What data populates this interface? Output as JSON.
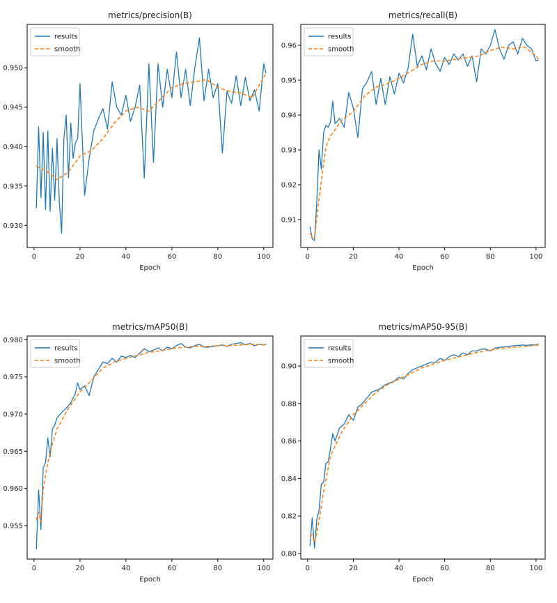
{
  "figure": {
    "colors": {
      "results": "#1f77b4",
      "smooth": "#ff7f0e"
    },
    "charts": [
      "precision",
      "recall",
      "map50",
      "map5095"
    ]
  },
  "chart_data": [
    {
      "type": "line",
      "title": "metrics/precision(B)",
      "xlabel": "Epoch",
      "ylabel": "",
      "xlim": [
        -3,
        104
      ],
      "ylim": [
        0.9272,
        0.9555
      ],
      "xticks": [
        0,
        20,
        40,
        60,
        80,
        100
      ],
      "xtick_labels": [
        "0",
        "20",
        "40",
        "60",
        "80",
        "100"
      ],
      "yticks": [
        0.93,
        0.935,
        0.94,
        0.945,
        0.95
      ],
      "ytick_labels": [
        "0.930",
        "0.935",
        "0.940",
        "0.945",
        "0.950"
      ],
      "legend": {
        "position": "top-left",
        "entries": [
          "results",
          "smooth"
        ]
      },
      "series": [
        {
          "name": "results",
          "style": "solid",
          "x": [
            1,
            2,
            3,
            4,
            5,
            6,
            7,
            8,
            9,
            10,
            11,
            12,
            13,
            14,
            15,
            16,
            17,
            18,
            19,
            20,
            22,
            24,
            26,
            28,
            30,
            32,
            34,
            36,
            38,
            40,
            42,
            44,
            46,
            48,
            50,
            52,
            54,
            56,
            58,
            60,
            62,
            64,
            66,
            68,
            70,
            72,
            74,
            76,
            78,
            80,
            82,
            84,
            86,
            88,
            90,
            92,
            94,
            96,
            98,
            100,
            101
          ],
          "y": [
            0.9322,
            0.9425,
            0.9335,
            0.9418,
            0.932,
            0.942,
            0.9318,
            0.9398,
            0.9332,
            0.941,
            0.933,
            0.929,
            0.941,
            0.944,
            0.936,
            0.943,
            0.9385,
            0.9405,
            0.941,
            0.948,
            0.9338,
            0.9385,
            0.942,
            0.9435,
            0.9448,
            0.9422,
            0.9482,
            0.945,
            0.944,
            0.9465,
            0.9432,
            0.945,
            0.9478,
            0.936,
            0.9505,
            0.938,
            0.9505,
            0.945,
            0.9498,
            0.9462,
            0.952,
            0.9462,
            0.9498,
            0.9452,
            0.95,
            0.9538,
            0.9458,
            0.9498,
            0.9462,
            0.948,
            0.9392,
            0.947,
            0.9455,
            0.949,
            0.9452,
            0.9488,
            0.9458,
            0.9472,
            0.9445,
            0.9505,
            0.9493
          ]
        },
        {
          "name": "smooth",
          "style": "dashed",
          "x": [
            1,
            5,
            10,
            15,
            20,
            25,
            30,
            35,
            40,
            45,
            50,
            55,
            60,
            65,
            70,
            75,
            80,
            85,
            90,
            95,
            100,
            101
          ],
          "y": [
            0.9375,
            0.937,
            0.9358,
            0.9368,
            0.9388,
            0.9395,
            0.941,
            0.943,
            0.9445,
            0.945,
            0.9445,
            0.946,
            0.9475,
            0.948,
            0.9482,
            0.9485,
            0.9475,
            0.947,
            0.9468,
            0.9462,
            0.9488,
            0.9493
          ]
        }
      ]
    },
    {
      "type": "line",
      "title": "metrics/recall(B)",
      "xlabel": "Epoch",
      "ylabel": "",
      "xlim": [
        -3,
        104
      ],
      "ylim": [
        0.902,
        0.966
      ],
      "xticks": [
        0,
        20,
        40,
        60,
        80,
        100
      ],
      "xtick_labels": [
        "0",
        "20",
        "40",
        "60",
        "80",
        "100"
      ],
      "yticks": [
        0.91,
        0.92,
        0.93,
        0.94,
        0.95,
        0.96
      ],
      "ytick_labels": [
        "0.91",
        "0.92",
        "0.93",
        "0.94",
        "0.95",
        "0.96"
      ],
      "legend": {
        "position": "top-left",
        "entries": [
          "results",
          "smooth"
        ]
      },
      "series": [
        {
          "name": "results",
          "style": "solid",
          "x": [
            1,
            2,
            3,
            4,
            5,
            6,
            7,
            8,
            9,
            10,
            11,
            12,
            14,
            16,
            18,
            20,
            22,
            24,
            26,
            28,
            30,
            32,
            34,
            36,
            38,
            40,
            42,
            44,
            46,
            48,
            50,
            52,
            54,
            56,
            58,
            60,
            62,
            64,
            66,
            68,
            70,
            72,
            74,
            76,
            78,
            80,
            82,
            84,
            86,
            88,
            90,
            92,
            94,
            96,
            98,
            100,
            101
          ],
          "y": [
            0.908,
            0.9045,
            0.904,
            0.915,
            0.93,
            0.9245,
            0.935,
            0.937,
            0.9365,
            0.938,
            0.944,
            0.9375,
            0.939,
            0.9365,
            0.9465,
            0.942,
            0.9335,
            0.9475,
            0.9495,
            0.9525,
            0.943,
            0.9505,
            0.943,
            0.951,
            0.946,
            0.952,
            0.9492,
            0.9535,
            0.9632,
            0.954,
            0.957,
            0.953,
            0.959,
            0.9548,
            0.9525,
            0.9565,
            0.9545,
            0.9575,
            0.9558,
            0.9575,
            0.954,
            0.957,
            0.9495,
            0.959,
            0.9575,
            0.96,
            0.9645,
            0.959,
            0.956,
            0.96,
            0.961,
            0.9575,
            0.962,
            0.96,
            0.959,
            0.9555,
            0.9558
          ]
        },
        {
          "name": "smooth",
          "style": "dashed",
          "x": [
            1,
            3,
            5,
            8,
            10,
            15,
            20,
            25,
            30,
            35,
            40,
            45,
            50,
            55,
            60,
            65,
            70,
            75,
            80,
            85,
            90,
            95,
            100,
            101
          ],
          "y": [
            0.906,
            0.9045,
            0.916,
            0.931,
            0.934,
            0.9385,
            0.941,
            0.9455,
            0.948,
            0.949,
            0.9505,
            0.9525,
            0.9545,
            0.9555,
            0.9555,
            0.956,
            0.9565,
            0.957,
            0.9585,
            0.9595,
            0.959,
            0.9595,
            0.957,
            0.956
          ]
        }
      ]
    },
    {
      "type": "line",
      "title": "metrics/mAP50(B)",
      "xlabel": "Epoch",
      "ylabel": "",
      "xlim": [
        -3,
        104
      ],
      "ylim": [
        0.9505,
        0.9805
      ],
      "xticks": [
        0,
        20,
        40,
        60,
        80,
        100
      ],
      "xtick_labels": [
        "0",
        "20",
        "40",
        "60",
        "80",
        "100"
      ],
      "yticks": [
        0.955,
        0.96,
        0.965,
        0.97,
        0.975,
        0.98
      ],
      "ytick_labels": [
        "0.955",
        "0.960",
        "0.965",
        "0.970",
        "0.975",
        "0.980"
      ],
      "legend": {
        "position": "top-left",
        "entries": [
          "results",
          "smooth"
        ]
      },
      "series": [
        {
          "name": "results",
          "style": "solid",
          "x": [
            1,
            2,
            3,
            4,
            5,
            6,
            7,
            8,
            9,
            10,
            12,
            14,
            16,
            18,
            19,
            20,
            22,
            24,
            26,
            28,
            30,
            32,
            34,
            36,
            38,
            40,
            42,
            44,
            46,
            48,
            50,
            52,
            54,
            56,
            58,
            60,
            62,
            64,
            66,
            68,
            70,
            72,
            74,
            76,
            78,
            80,
            82,
            84,
            86,
            88,
            90,
            92,
            94,
            96,
            98,
            100,
            101
          ],
          "y": [
            0.9518,
            0.9598,
            0.9545,
            0.9628,
            0.9635,
            0.9668,
            0.9642,
            0.968,
            0.9685,
            0.9695,
            0.9702,
            0.9708,
            0.9715,
            0.9728,
            0.9742,
            0.9733,
            0.9738,
            0.9725,
            0.975,
            0.976,
            0.977,
            0.9768,
            0.9775,
            0.977,
            0.9778,
            0.9776,
            0.9779,
            0.9776,
            0.9782,
            0.9788,
            0.9784,
            0.9786,
            0.9789,
            0.9785,
            0.979,
            0.9788,
            0.9792,
            0.9795,
            0.979,
            0.9789,
            0.9792,
            0.9794,
            0.979,
            0.979,
            0.9791,
            0.9792,
            0.9793,
            0.9791,
            0.9794,
            0.9795,
            0.9796,
            0.9793,
            0.9795,
            0.9792,
            0.9794,
            0.9793,
            0.9794
          ]
        },
        {
          "name": "smooth",
          "style": "dashed",
          "x": [
            1,
            2,
            3,
            4,
            5,
            6,
            8,
            10,
            15,
            20,
            25,
            30,
            35,
            40,
            45,
            50,
            55,
            60,
            65,
            70,
            75,
            80,
            85,
            90,
            95,
            100,
            101
          ],
          "y": [
            0.9558,
            0.9568,
            0.9555,
            0.96,
            0.9618,
            0.9635,
            0.966,
            0.968,
            0.9708,
            0.973,
            0.9745,
            0.9762,
            0.977,
            0.9775,
            0.9779,
            0.9783,
            0.9785,
            0.9788,
            0.979,
            0.9791,
            0.9791,
            0.9792,
            0.9792,
            0.9793,
            0.9794,
            0.9793,
            0.9793
          ]
        }
      ]
    },
    {
      "type": "line",
      "title": "metrics/mAP50-95(B)",
      "xlabel": "Epoch",
      "ylabel": "",
      "xlim": [
        -3,
        104
      ],
      "ylim": [
        0.797,
        0.916
      ],
      "xticks": [
        0,
        20,
        40,
        60,
        80,
        100
      ],
      "xtick_labels": [
        "0",
        "20",
        "40",
        "60",
        "80",
        "100"
      ],
      "yticks": [
        0.8,
        0.82,
        0.84,
        0.86,
        0.88,
        0.9
      ],
      "ytick_labels": [
        "0.80",
        "0.82",
        "0.84",
        "0.86",
        "0.88",
        "0.90"
      ],
      "legend": {
        "position": "top-left",
        "entries": [
          "results",
          "smooth"
        ]
      },
      "series": [
        {
          "name": "results",
          "style": "solid",
          "x": [
            1,
            2,
            3,
            4,
            5,
            6,
            7,
            8,
            9,
            10,
            11,
            12,
            14,
            16,
            18,
            20,
            22,
            24,
            26,
            28,
            30,
            32,
            34,
            36,
            38,
            40,
            42,
            44,
            46,
            48,
            50,
            52,
            54,
            56,
            58,
            60,
            62,
            64,
            66,
            68,
            70,
            72,
            74,
            76,
            78,
            80,
            82,
            84,
            86,
            88,
            90,
            92,
            94,
            96,
            98,
            100,
            101
          ],
          "y": [
            0.804,
            0.819,
            0.803,
            0.818,
            0.823,
            0.837,
            0.838,
            0.848,
            0.849,
            0.856,
            0.864,
            0.86,
            0.867,
            0.869,
            0.874,
            0.871,
            0.878,
            0.88,
            0.883,
            0.886,
            0.887,
            0.888,
            0.89,
            0.891,
            0.892,
            0.894,
            0.893,
            0.896,
            0.898,
            0.899,
            0.9,
            0.901,
            0.902,
            0.902,
            0.904,
            0.903,
            0.905,
            0.906,
            0.905,
            0.907,
            0.906,
            0.908,
            0.908,
            0.909,
            0.909,
            0.908,
            0.9095,
            0.91,
            0.9102,
            0.9105,
            0.9108,
            0.911,
            0.9112,
            0.911,
            0.9113,
            0.9112,
            0.9118
          ]
        },
        {
          "name": "smooth",
          "style": "dashed",
          "x": [
            1,
            2,
            3,
            4,
            5,
            7,
            10,
            15,
            20,
            25,
            30,
            35,
            40,
            45,
            50,
            55,
            60,
            65,
            70,
            75,
            80,
            85,
            90,
            95,
            100,
            101
          ],
          "y": [
            0.809,
            0.81,
            0.806,
            0.811,
            0.818,
            0.833,
            0.852,
            0.865,
            0.874,
            0.88,
            0.886,
            0.89,
            0.893,
            0.896,
            0.899,
            0.901,
            0.903,
            0.9045,
            0.906,
            0.9075,
            0.9085,
            0.9095,
            0.91,
            0.9105,
            0.911,
            0.9112
          ]
        }
      ]
    }
  ]
}
